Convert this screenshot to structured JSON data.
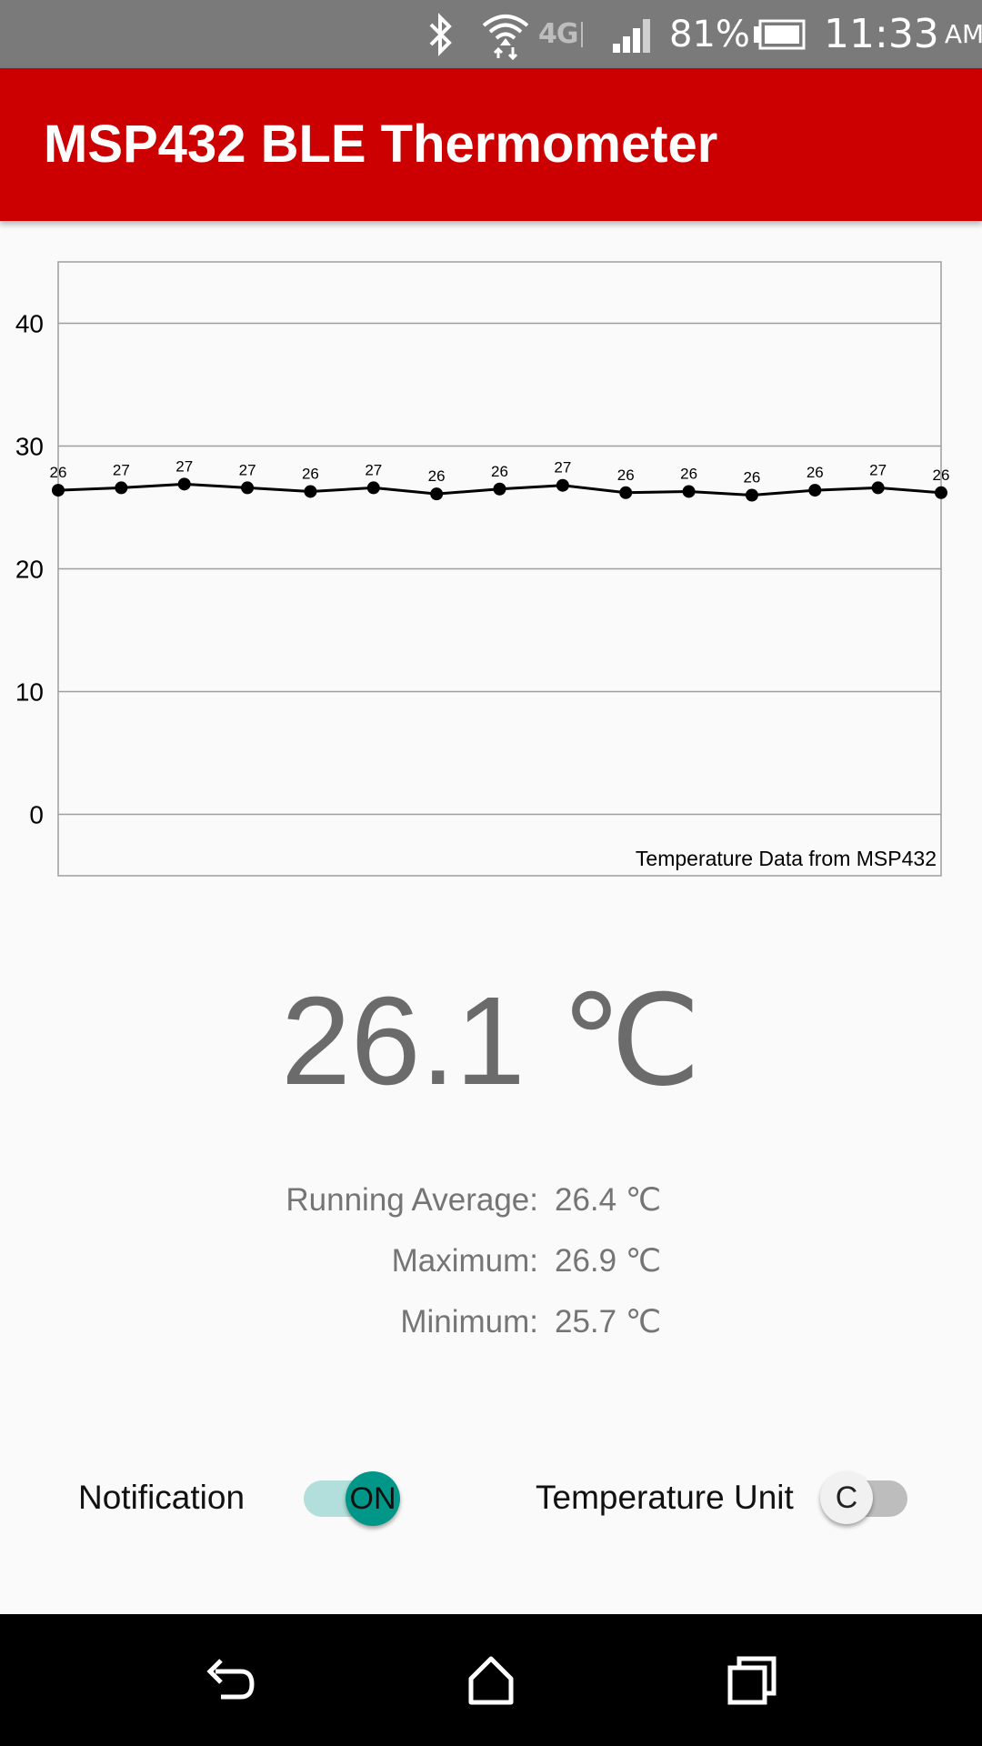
{
  "status_bar": {
    "icons": [
      "bluetooth-icon",
      "wifi-icon",
      "4g-lte-icon",
      "signal-icon",
      "battery-icon"
    ],
    "network_label": "4G",
    "battery_percent": "81%",
    "time": "11:33",
    "ampm": "AM"
  },
  "app_bar": {
    "title": "MSP432 BLE Thermometer",
    "color": "#cc0000"
  },
  "chart_data": {
    "type": "line",
    "description": "Temperature Data from MSP432",
    "y_ticks": [
      "40",
      "30",
      "20",
      "10",
      "0"
    ],
    "ylim": [
      -5,
      45
    ],
    "grid": true,
    "x": [
      1,
      2,
      3,
      4,
      5,
      6,
      7,
      8,
      9,
      10,
      11,
      12,
      13,
      14,
      15
    ],
    "values": [
      26.4,
      26.6,
      26.9,
      26.6,
      26.3,
      26.6,
      26.1,
      26.5,
      26.8,
      26.2,
      26.3,
      26.0,
      26.4,
      26.6,
      26.2
    ],
    "data_labels": [
      "26",
      "27",
      "27",
      "27",
      "26",
      "27",
      "26",
      "26",
      "27",
      "26",
      "26",
      "26",
      "26",
      "27",
      "26"
    ],
    "line_color": "#000000"
  },
  "current_temperature": "26.1 ℃",
  "stats": [
    {
      "label": "Running Average:",
      "value": "26.4 ℃"
    },
    {
      "label": "Maximum:",
      "value": "26.9 ℃"
    },
    {
      "label": "Minimum:",
      "value": "25.7 ℃"
    }
  ],
  "controls": {
    "notification": {
      "label": "Notification",
      "state_text": "ON",
      "on": true,
      "accent": "#009688"
    },
    "temperature_unit": {
      "label": "Temperature Unit",
      "state_text": "C",
      "on": false
    }
  },
  "nav_bar": {
    "buttons": [
      "back-icon",
      "home-icon",
      "recent-apps-icon"
    ]
  }
}
